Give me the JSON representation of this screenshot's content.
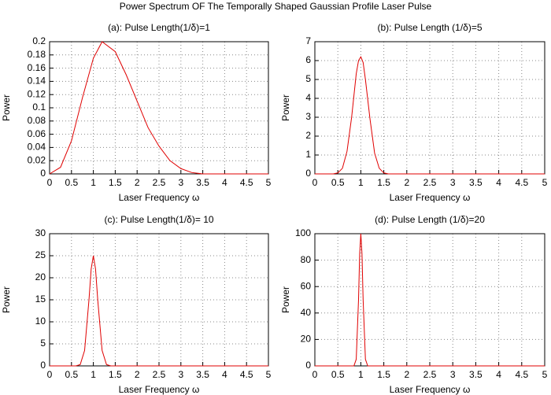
{
  "title": "Power Spectrum OF The Temporally Shaped Gaussian Profile Laser Pulse",
  "chart_data": [
    {
      "type": "line",
      "title": "(a): Pulse Length(1/δ)=1",
      "xlabel": "Laser Frequency ω",
      "ylabel": "Power",
      "x": [
        0,
        0.25,
        0.5,
        0.75,
        1.0,
        1.2,
        1.5,
        1.75,
        2.0,
        2.25,
        2.5,
        2.75,
        3.0,
        3.25,
        3.5,
        4,
        5
      ],
      "values": [
        0,
        0.01,
        0.05,
        0.115,
        0.175,
        0.2,
        0.185,
        0.15,
        0.11,
        0.07,
        0.042,
        0.02,
        0.008,
        0.002,
        0,
        0,
        0
      ],
      "color": "#e00000",
      "xlim": [
        0,
        5
      ],
      "ylim": [
        0,
        0.2
      ],
      "xticks": [
        0,
        0.5,
        1,
        1.5,
        2,
        2.5,
        3,
        3.5,
        4,
        4.5,
        5
      ],
      "yticks": [
        0,
        0.02,
        0.04,
        0.06,
        0.08,
        0.1,
        0.12,
        0.14,
        0.16,
        0.18,
        0.2
      ],
      "grid": true
    },
    {
      "type": "line",
      "title": "(b): Pulse Length (1/δ)=5",
      "xlabel": "Laser Frequency ω",
      "ylabel": "Power",
      "x": [
        0,
        0.4,
        0.5,
        0.6,
        0.7,
        0.8,
        0.9,
        0.95,
        1.0,
        1.05,
        1.1,
        1.2,
        1.3,
        1.4,
        1.5,
        1.6,
        5
      ],
      "values": [
        0,
        0,
        0.05,
        0.3,
        1.2,
        3.0,
        5.3,
        6.0,
        6.2,
        5.9,
        5.0,
        2.9,
        1.1,
        0.3,
        0.05,
        0,
        0
      ],
      "color": "#e00000",
      "xlim": [
        0,
        5
      ],
      "ylim": [
        0,
        7
      ],
      "xticks": [
        0,
        0.5,
        1,
        1.5,
        2,
        2.5,
        3,
        3.5,
        4,
        4.5,
        5
      ],
      "yticks": [
        0,
        1,
        2,
        3,
        4,
        5,
        6,
        7
      ],
      "grid": true
    },
    {
      "type": "line",
      "title": "(c): Pulse Length(1/δ)= 10",
      "xlabel": "Laser Frequency ω",
      "ylabel": "Power",
      "x": [
        0,
        0.6,
        0.7,
        0.8,
        0.9,
        0.95,
        1.0,
        1.05,
        1.1,
        1.2,
        1.3,
        1.4,
        5
      ],
      "values": [
        0,
        0,
        0.3,
        3.5,
        15,
        22,
        25,
        22,
        15,
        3.5,
        0.3,
        0,
        0
      ],
      "color": "#e00000",
      "xlim": [
        0,
        5
      ],
      "ylim": [
        0,
        30
      ],
      "xticks": [
        0,
        0.5,
        1,
        1.5,
        2,
        2.5,
        3,
        3.5,
        4,
        4.5,
        5
      ],
      "yticks": [
        0,
        5,
        10,
        15,
        20,
        25,
        30
      ],
      "grid": true
    },
    {
      "type": "line",
      "title": "(d): Pulse Length (1/δ)=20",
      "xlabel": "Laser Frequency ω",
      "ylabel": "Power",
      "x": [
        0,
        0.85,
        0.9,
        0.95,
        0.975,
        1.0,
        1.025,
        1.05,
        1.1,
        1.15,
        5
      ],
      "values": [
        0,
        0,
        5,
        50,
        85,
        100,
        85,
        50,
        5,
        0,
        0
      ],
      "color": "#e00000",
      "xlim": [
        0,
        5
      ],
      "ylim": [
        0,
        100
      ],
      "xticks": [
        0,
        0.5,
        1,
        1.5,
        2,
        2.5,
        3,
        3.5,
        4,
        4.5,
        5
      ],
      "yticks": [
        0,
        20,
        40,
        60,
        80,
        100
      ],
      "grid": true
    }
  ]
}
